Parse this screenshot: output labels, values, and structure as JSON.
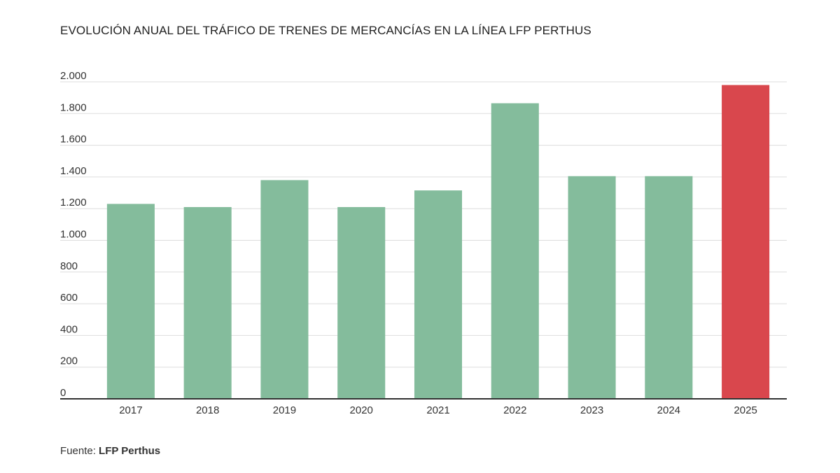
{
  "chart_data": {
    "type": "bar",
    "title": "EVOLUCIÓN ANUAL DEL TRÁFICO DE TRENES DE MERCANCÍAS EN LA LÍNEA LFP PERTHUS",
    "categories": [
      "2017",
      "2018",
      "2019",
      "2020",
      "2021",
      "2022",
      "2023",
      "2024",
      "2025"
    ],
    "values": [
      1230,
      1210,
      1380,
      1210,
      1315,
      1865,
      1405,
      1405,
      1980
    ],
    "highlight": [
      "2025"
    ],
    "y_ticks": [
      0,
      200,
      400,
      600,
      800,
      1000,
      1200,
      1400,
      1600,
      1800,
      2000
    ],
    "y_tick_labels": [
      "0",
      "200",
      "400",
      "600",
      "800",
      "1.000",
      "1.200",
      "1.400",
      "1.600",
      "1.800",
      "2.000"
    ],
    "ylim": [
      0,
      2000
    ],
    "xlabel": "",
    "ylabel": "",
    "grid": true
  },
  "colors": {
    "bar": "#84bc9c",
    "highlight": "#d9474d",
    "grid": "#dddddd",
    "axis": "#333333"
  },
  "source": {
    "label": "Fuente:",
    "name": "LFP Perthus"
  }
}
